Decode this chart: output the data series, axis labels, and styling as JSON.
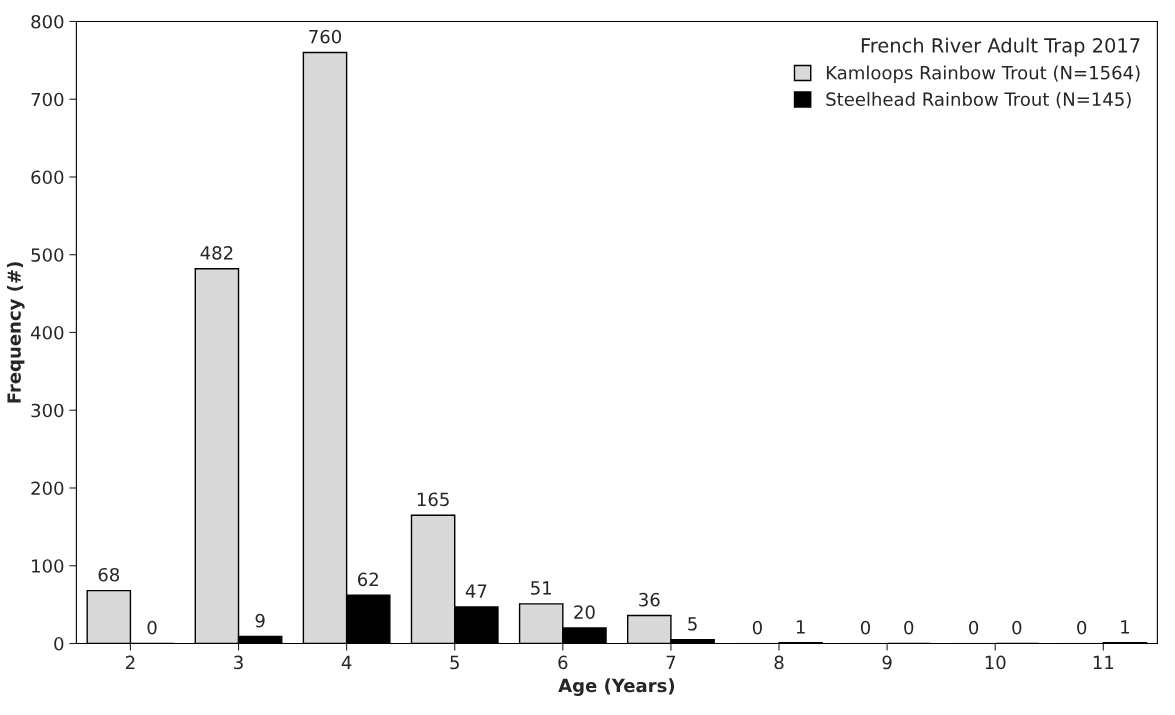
{
  "chart_data": {
    "type": "bar",
    "xlabel": "Age (Years)",
    "ylabel": "Frequency (#)",
    "legend_title": "French River Adult Trap 2017",
    "categories": [
      "2",
      "3",
      "4",
      "5",
      "6",
      "7",
      "8",
      "9",
      "10",
      "11"
    ],
    "series": [
      {
        "name": "Kamloops Rainbow Trout (N=1564)",
        "color": "#d9d9d9",
        "values": [
          68,
          482,
          760,
          165,
          51,
          36,
          0,
          0,
          0,
          0
        ]
      },
      {
        "name": "Steelhead Rainbow Trout (N=145)",
        "color": "#000000",
        "values": [
          0,
          9,
          62,
          47,
          20,
          5,
          1,
          0,
          0,
          1
        ]
      }
    ],
    "ylim": [
      0,
      800
    ],
    "yticks": [
      0,
      100,
      200,
      300,
      400,
      500,
      600,
      700,
      800
    ],
    "data_labels": true,
    "grid": false,
    "legend": "top right"
  }
}
